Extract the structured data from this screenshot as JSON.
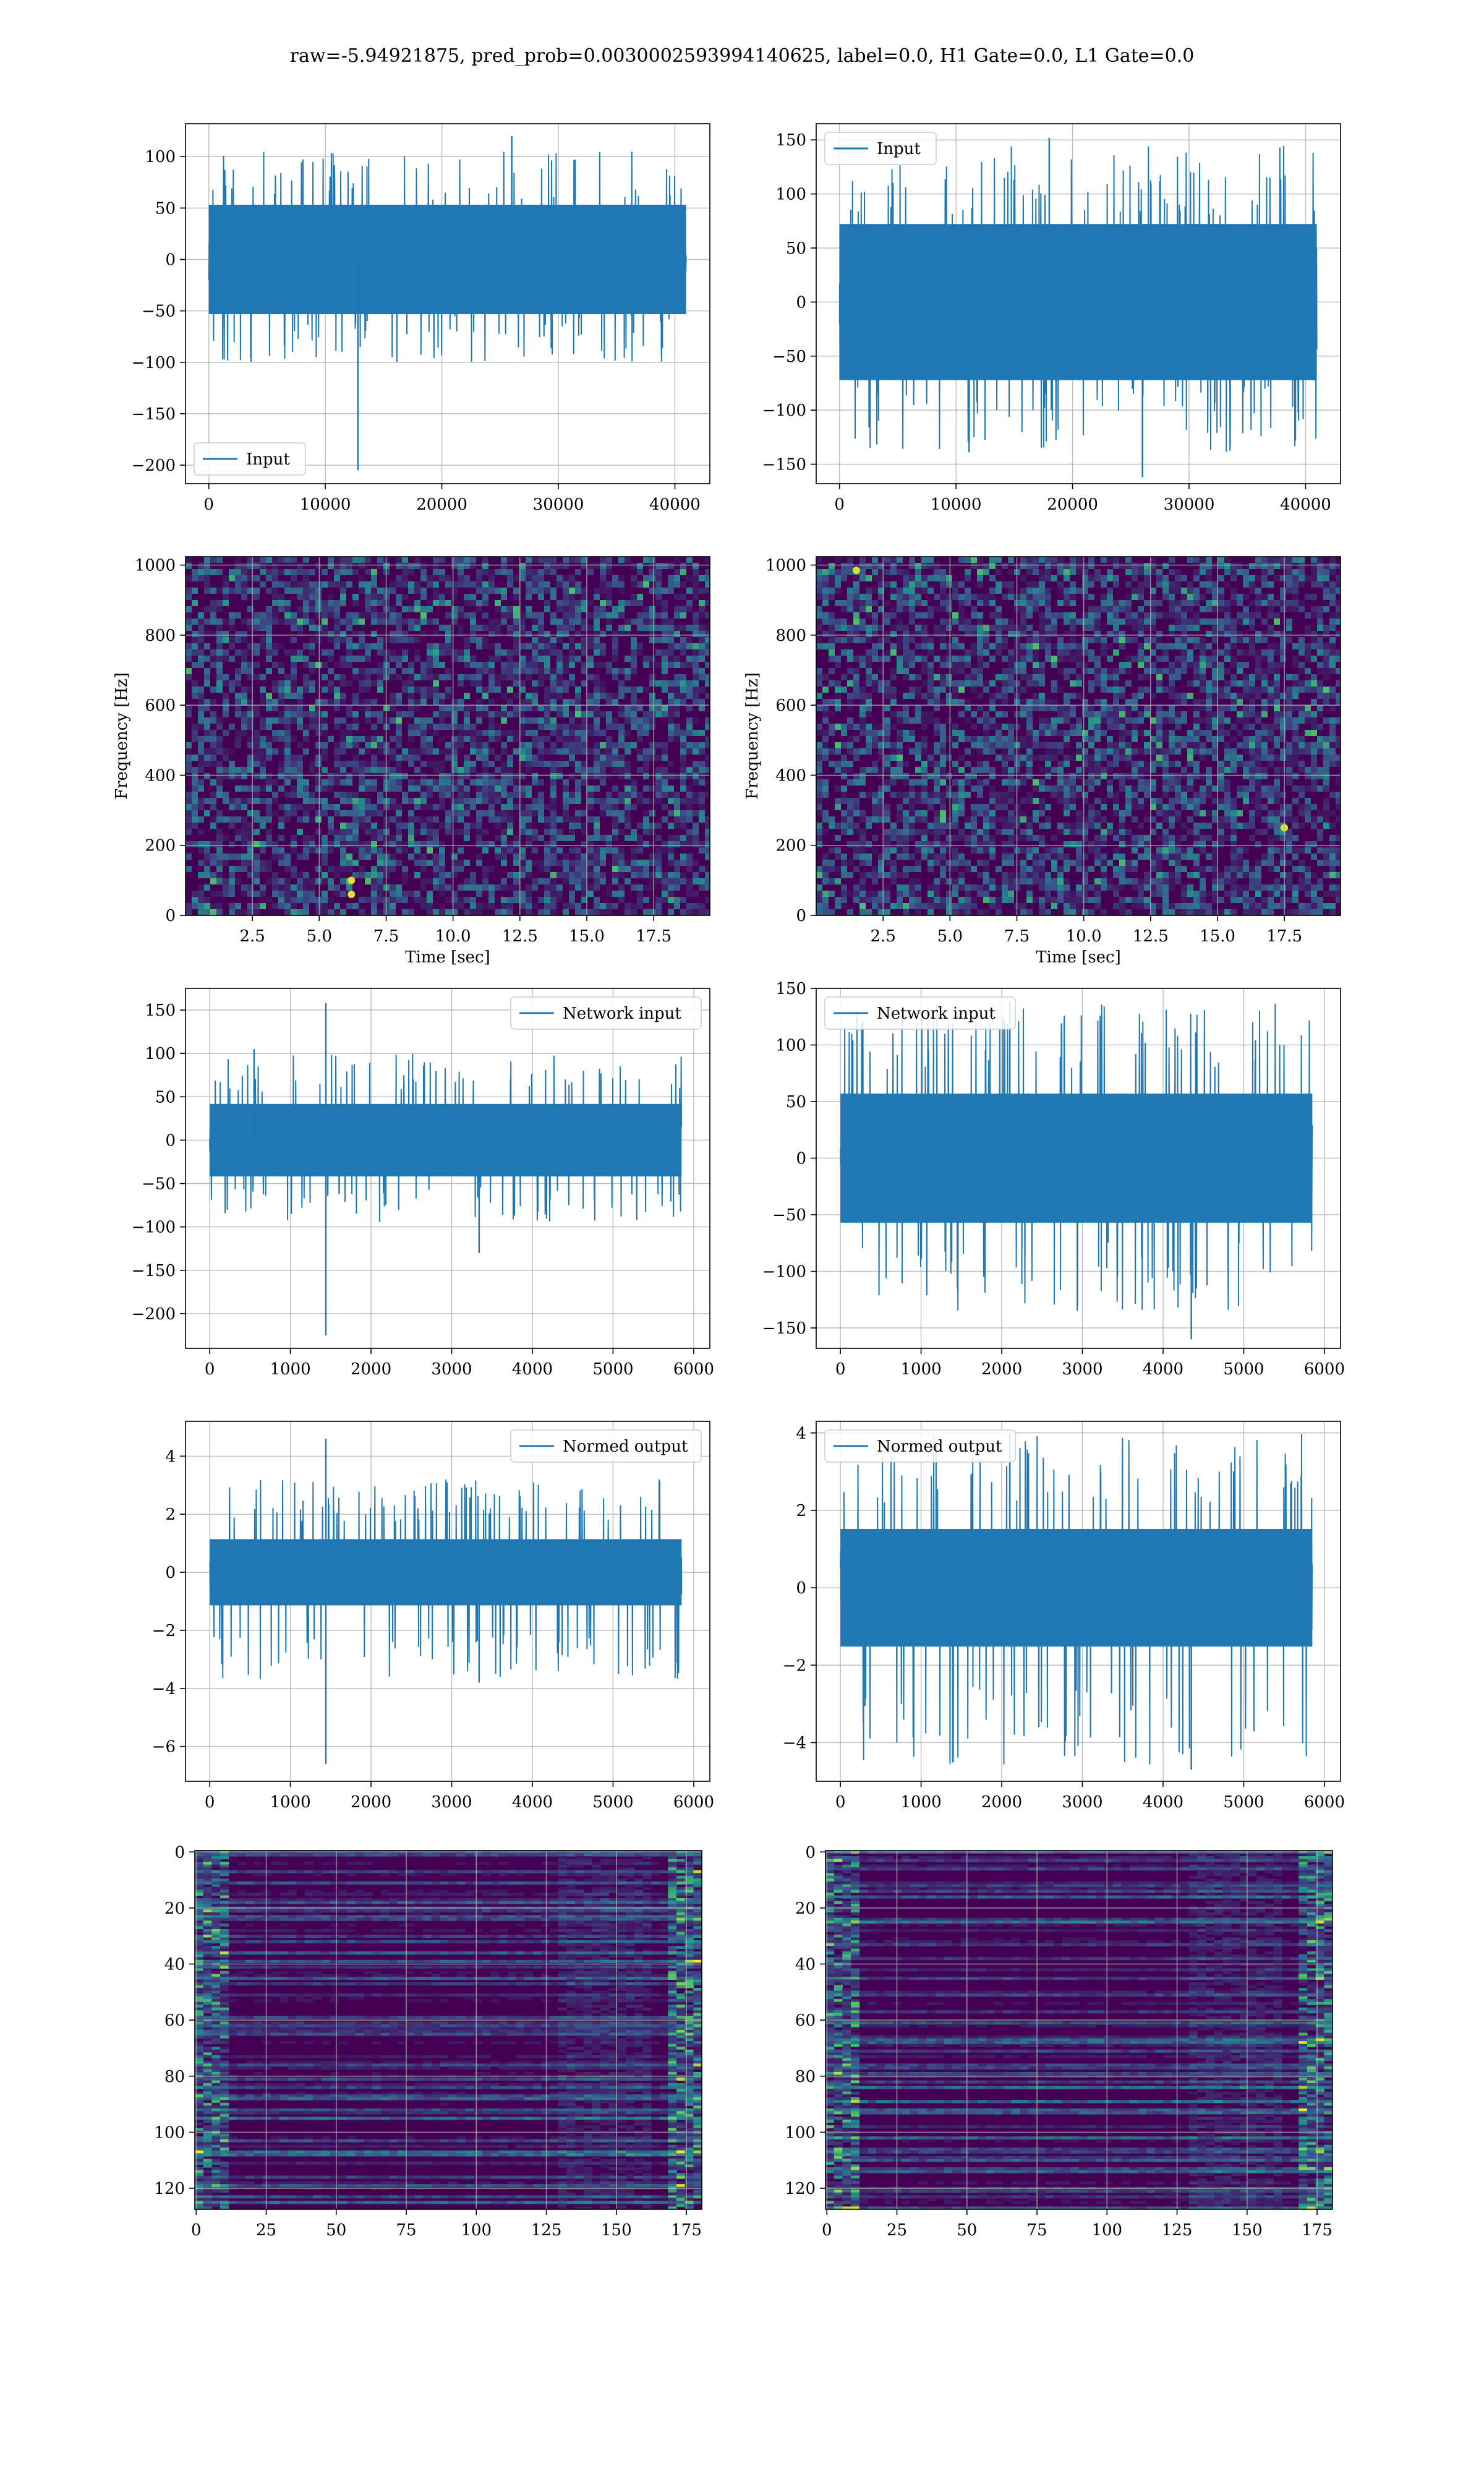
{
  "figure_title": "raw=-5.94921875, pred_prob=0.0030002593994140625, label=0.0, H1 Gate=0.0, L1 Gate=0.0",
  "colors": {
    "line": "#1f77b4",
    "grid": "#b0b0b0",
    "viridis_dark": "#440154",
    "viridis_mid": "#21918c",
    "viridis_bright": "#fde725"
  },
  "chart_data": [
    {
      "id": "h1-input",
      "type": "line",
      "title": "",
      "xlabel": "",
      "ylabel": "",
      "legend": "lower-left",
      "grid": true,
      "xlim": [
        -2000,
        43000
      ],
      "ylim": [
        -218,
        132
      ],
      "xticks": [
        0,
        10000,
        20000,
        30000,
        40000
      ],
      "xtick_labels": [
        "0",
        "10000",
        "20000",
        "30000",
        "40000"
      ],
      "yticks": [
        -200,
        -150,
        -100,
        -50,
        0,
        50,
        100
      ],
      "ytick_labels": [
        "−200",
        "−150",
        "−100",
        "−50",
        "0",
        "50",
        "100"
      ],
      "series": [
        {
          "name": "Input",
          "x_range": [
            0,
            40960
          ],
          "noise_amplitude": 28,
          "envelope": [
            -100,
            105
          ],
          "spikes": [
            [
              12800,
              -205
            ],
            [
              26000,
              120
            ]
          ]
        }
      ]
    },
    {
      "id": "l1-input",
      "type": "line",
      "title": "",
      "xlabel": "",
      "ylabel": "",
      "legend": "upper-left",
      "grid": true,
      "xlim": [
        -2000,
        43000
      ],
      "ylim": [
        -168,
        165
      ],
      "xticks": [
        0,
        10000,
        20000,
        30000,
        40000
      ],
      "xtick_labels": [
        "0",
        "10000",
        "20000",
        "30000",
        "40000"
      ],
      "yticks": [
        -150,
        -100,
        -50,
        0,
        50,
        100,
        150
      ],
      "ytick_labels": [
        "−150",
        "−100",
        "−50",
        "0",
        "50",
        "100",
        "150"
      ],
      "series": [
        {
          "name": "Input",
          "x_range": [
            0,
            40960
          ],
          "noise_amplitude": 38,
          "envelope": [
            -140,
            145
          ],
          "spikes": [
            [
              18000,
              152
            ],
            [
              26000,
              -162
            ]
          ]
        }
      ]
    },
    {
      "id": "h1-spectrogram",
      "type": "heatmap",
      "title": "",
      "xlabel": "Time [sec]",
      "ylabel": "Frequency [Hz]",
      "grid": true,
      "colormap": "viridis",
      "xlim": [
        0,
        19.6
      ],
      "ylim": [
        0,
        1024
      ],
      "xticks": [
        2.5,
        5.0,
        7.5,
        10.0,
        12.5,
        15.0,
        17.5
      ],
      "xtick_labels": [
        "2.5",
        "5.0",
        "7.5",
        "10.0",
        "12.5",
        "15.0",
        "17.5"
      ],
      "yticks": [
        0,
        200,
        400,
        600,
        800,
        1000
      ],
      "ytick_labels": [
        "0",
        "200",
        "400",
        "600",
        "800",
        "1000"
      ],
      "hotspots": [
        [
          6.2,
          100
        ],
        [
          6.2,
          60
        ]
      ]
    },
    {
      "id": "l1-spectrogram",
      "type": "heatmap",
      "title": "",
      "xlabel": "Time [sec]",
      "ylabel": "Frequency [Hz]",
      "grid": true,
      "colormap": "viridis",
      "xlim": [
        0,
        19.6
      ],
      "ylim": [
        0,
        1024
      ],
      "xticks": [
        2.5,
        5.0,
        7.5,
        10.0,
        12.5,
        15.0,
        17.5
      ],
      "xtick_labels": [
        "2.5",
        "5.0",
        "7.5",
        "10.0",
        "12.5",
        "15.0",
        "17.5"
      ],
      "yticks": [
        0,
        200,
        400,
        600,
        800,
        1000
      ],
      "ytick_labels": [
        "0",
        "200",
        "400",
        "600",
        "800",
        "1000"
      ],
      "hotspots": [
        [
          1.5,
          985
        ],
        [
          17.5,
          250
        ]
      ]
    },
    {
      "id": "h1-network-input",
      "type": "line",
      "title": "",
      "xlabel": "",
      "ylabel": "",
      "legend": "upper-right",
      "grid": true,
      "xlim": [
        -300,
        6200
      ],
      "ylim": [
        -240,
        175
      ],
      "xticks": [
        0,
        1000,
        2000,
        3000,
        4000,
        5000,
        6000
      ],
      "xtick_labels": [
        "0",
        "1000",
        "2000",
        "3000",
        "4000",
        "5000",
        "6000"
      ],
      "yticks": [
        -200,
        -150,
        -100,
        -50,
        0,
        50,
        100,
        150
      ],
      "ytick_labels": [
        "−200",
        "−150",
        "−100",
        "−50",
        "0",
        "50",
        "100",
        "150"
      ],
      "series": [
        {
          "name": "Network input",
          "x_range": [
            0,
            5850
          ],
          "noise_amplitude": 22,
          "envelope": [
            -95,
            100
          ],
          "spikes": [
            [
              1440,
              158
            ],
            [
              1440,
              -225
            ],
            [
              3340,
              -130
            ],
            [
              550,
              105
            ]
          ]
        }
      ]
    },
    {
      "id": "l1-network-input",
      "type": "line",
      "title": "",
      "xlabel": "",
      "ylabel": "",
      "legend": "upper-left",
      "grid": true,
      "xlim": [
        -300,
        6200
      ],
      "ylim": [
        -168,
        150
      ],
      "xticks": [
        0,
        1000,
        2000,
        3000,
        4000,
        5000,
        6000
      ],
      "xtick_labels": [
        "0",
        "1000",
        "2000",
        "3000",
        "4000",
        "5000",
        "6000"
      ],
      "yticks": [
        -150,
        -100,
        -50,
        0,
        50,
        100,
        150
      ],
      "ytick_labels": [
        "−150",
        "−100",
        "−50",
        "0",
        "50",
        "100",
        "150"
      ],
      "series": [
        {
          "name": "Network input",
          "x_range": [
            0,
            5850
          ],
          "noise_amplitude": 30,
          "envelope": [
            -135,
            140
          ],
          "spikes": [
            [
              2100,
              138
            ],
            [
              4350,
              -160
            ]
          ]
        }
      ]
    },
    {
      "id": "h1-normed-output",
      "type": "line",
      "title": "",
      "xlabel": "",
      "ylabel": "",
      "legend": "upper-right",
      "grid": true,
      "xlim": [
        -300,
        6200
      ],
      "ylim": [
        -7.2,
        5.2
      ],
      "xticks": [
        0,
        1000,
        2000,
        3000,
        4000,
        5000,
        6000
      ],
      "xtick_labels": [
        "0",
        "1000",
        "2000",
        "3000",
        "4000",
        "5000",
        "6000"
      ],
      "yticks": [
        -6,
        -4,
        -2,
        0,
        2,
        4
      ],
      "ytick_labels": [
        "−6",
        "−4",
        "−2",
        "0",
        "2",
        "4"
      ],
      "series": [
        {
          "name": "Normed output",
          "x_range": [
            0,
            5850
          ],
          "noise_amplitude": 0.6,
          "envelope": [
            -3.8,
            3.2
          ],
          "spikes": [
            [
              1440,
              4.6
            ],
            [
              1440,
              -6.6
            ],
            [
              3340,
              -3.8
            ]
          ]
        }
      ]
    },
    {
      "id": "l1-normed-output",
      "type": "line",
      "title": "",
      "xlabel": "",
      "ylabel": "",
      "legend": "upper-left",
      "grid": true,
      "xlim": [
        -300,
        6200
      ],
      "ylim": [
        -5.0,
        4.3
      ],
      "xticks": [
        0,
        1000,
        2000,
        3000,
        4000,
        5000,
        6000
      ],
      "xtick_labels": [
        "0",
        "1000",
        "2000",
        "3000",
        "4000",
        "5000",
        "6000"
      ],
      "yticks": [
        -4,
        -2,
        0,
        2,
        4
      ],
      "ytick_labels": [
        "−4",
        "−2",
        "0",
        "2",
        "4"
      ],
      "series": [
        {
          "name": "Normed output",
          "x_range": [
            0,
            5850
          ],
          "noise_amplitude": 0.8,
          "envelope": [
            -4.6,
            4.0
          ],
          "spikes": [
            [
              2100,
              4.0
            ],
            [
              4350,
              -4.7
            ]
          ]
        }
      ]
    },
    {
      "id": "h1-activation-map",
      "type": "heatmap",
      "title": "",
      "xlabel": "",
      "ylabel": "",
      "grid": true,
      "colormap": "viridis",
      "y_inverted": true,
      "xlim": [
        -0.5,
        180.5
      ],
      "ylim": [
        127.5,
        -0.5
      ],
      "xticks": [
        0,
        25,
        50,
        75,
        100,
        125,
        150,
        175
      ],
      "xtick_labels": [
        "0",
        "25",
        "50",
        "75",
        "100",
        "125",
        "150",
        "175"
      ],
      "yticks": [
        0,
        20,
        40,
        60,
        80,
        100,
        120
      ],
      "ytick_labels": [
        "0",
        "20",
        "40",
        "60",
        "80",
        "100",
        "120"
      ]
    },
    {
      "id": "l1-activation-map",
      "type": "heatmap",
      "title": "",
      "xlabel": "",
      "ylabel": "",
      "grid": true,
      "colormap": "viridis",
      "y_inverted": true,
      "xlim": [
        -0.5,
        180.5
      ],
      "ylim": [
        127.5,
        -0.5
      ],
      "xticks": [
        0,
        25,
        50,
        75,
        100,
        125,
        150,
        175
      ],
      "xtick_labels": [
        "0",
        "25",
        "50",
        "75",
        "100",
        "125",
        "150",
        "175"
      ],
      "yticks": [
        0,
        20,
        40,
        60,
        80,
        100,
        120
      ],
      "ytick_labels": [
        "0",
        "20",
        "40",
        "60",
        "80",
        "100",
        "120"
      ]
    }
  ]
}
